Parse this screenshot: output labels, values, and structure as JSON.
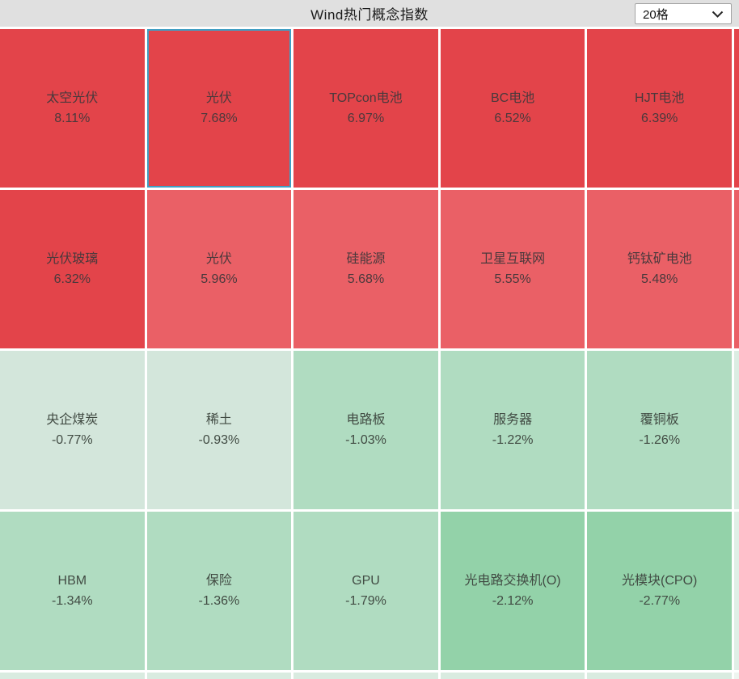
{
  "panel": {
    "title": "Wind热门概念指数"
  },
  "controls": {
    "grid_count": {
      "value": "20格",
      "icon": "chevron-down-icon"
    }
  },
  "colors": {
    "header_bg": "#e0e0e0",
    "red_strong": "#e3444a",
    "red_light": "#ea6066",
    "green_pale": "#d3e6db",
    "green_mid": "#b0dcc1",
    "green_deep": "#93d2a9",
    "selected_border": "#3f9fc4",
    "text_on_red": "#4a393c",
    "text_on_green": "#414b43",
    "right_slivers": [
      "#e3444a",
      "#ea6066",
      "#dcede3",
      "#e0efe6"
    ],
    "bottom_sliver": "#d9ebe0",
    "corner_sliver": "#eef5f0"
  },
  "cells": [
    {
      "label": "太空光伏",
      "change": "8.11%",
      "tone": "red_strong",
      "selected": false
    },
    {
      "label": "光伏",
      "change": "7.68%",
      "tone": "red_strong",
      "selected": true
    },
    {
      "label": "TOPcon电池",
      "change": "6.97%",
      "tone": "red_strong",
      "selected": false
    },
    {
      "label": "BC电池",
      "change": "6.52%",
      "tone": "red_strong",
      "selected": false
    },
    {
      "label": "HJT电池",
      "change": "6.39%",
      "tone": "red_strong",
      "selected": false
    },
    {
      "label": "光伏玻璃",
      "change": "6.32%",
      "tone": "red_strong",
      "selected": false
    },
    {
      "label": "光伏",
      "change": "5.96%",
      "tone": "red_light",
      "selected": false
    },
    {
      "label": "硅能源",
      "change": "5.68%",
      "tone": "red_light",
      "selected": false
    },
    {
      "label": "卫星互联网",
      "change": "5.55%",
      "tone": "red_light",
      "selected": false
    },
    {
      "label": "钙钛矿电池",
      "change": "5.48%",
      "tone": "red_light",
      "selected": false
    },
    {
      "label": "央企煤炭",
      "change": "-0.77%",
      "tone": "green_pale",
      "selected": false
    },
    {
      "label": "稀土",
      "change": "-0.93%",
      "tone": "green_pale",
      "selected": false
    },
    {
      "label": "电路板",
      "change": "-1.03%",
      "tone": "green_mid",
      "selected": false
    },
    {
      "label": "服务器",
      "change": "-1.22%",
      "tone": "green_mid",
      "selected": false
    },
    {
      "label": "覆铜板",
      "change": "-1.26%",
      "tone": "green_mid",
      "selected": false
    },
    {
      "label": "HBM",
      "change": "-1.34%",
      "tone": "green_mid",
      "selected": false
    },
    {
      "label": "保险",
      "change": "-1.36%",
      "tone": "green_mid",
      "selected": false
    },
    {
      "label": "GPU",
      "change": "-1.79%",
      "tone": "green_mid",
      "selected": false
    },
    {
      "label": "光电路交换机(O)",
      "change": "-2.12%",
      "tone": "green_deep",
      "selected": false
    },
    {
      "label": "光模块(CPO)",
      "change": "-2.77%",
      "tone": "green_deep",
      "selected": false
    }
  ],
  "chart_data": {
    "type": "heatmap",
    "title": "Wind热门概念指数",
    "categories": [
      "太空光伏",
      "光伏",
      "TOPcon电池",
      "BC电池",
      "HJT电池",
      "光伏玻璃",
      "光伏",
      "硅能源",
      "卫星互联网",
      "钙钛矿电池",
      "央企煤炭",
      "稀土",
      "电路板",
      "服务器",
      "覆铜板",
      "HBM",
      "保险",
      "GPU",
      "光电路交换机(O)",
      "光模块(CPO)"
    ],
    "values": [
      8.11,
      7.68,
      6.97,
      6.52,
      6.39,
      6.32,
      5.96,
      5.68,
      5.55,
      5.48,
      -0.77,
      -0.93,
      -1.03,
      -1.22,
      -1.26,
      -1.34,
      -1.36,
      -1.79,
      -2.12,
      -2.77
    ],
    "unit": "%",
    "layout": "4 rows x 5 columns, values sorted descending left-to-right top-to-bottom",
    "color_rule": "red shades = positive daily change, green shades = negative daily change",
    "selected_tile": "光伏 7.68%",
    "grid_size_control": "20格"
  }
}
